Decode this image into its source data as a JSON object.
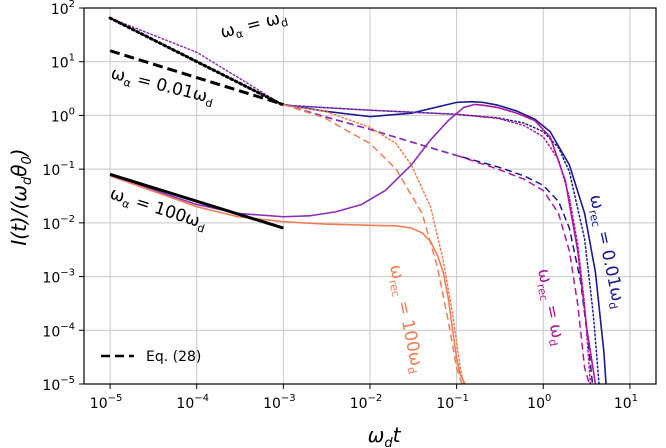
{
  "chart_data": {
    "type": "line",
    "xlabel": "ω_d t",
    "ylabel": "I(t)/(ω_d θ_0)",
    "xscale": "log",
    "yscale": "log",
    "xlim": [
      5e-06,
      20
    ],
    "ylim": [
      1e-05,
      100
    ],
    "xticks": [
      "10^-5",
      "10^-4",
      "10^-3",
      "10^-2",
      "10^-1",
      "10^0",
      "10^1"
    ],
    "yticks": [
      "10^-5",
      "10^-4",
      "10^-3",
      "10^-2",
      "10^-1",
      "10^0",
      "10^1",
      "10^2"
    ],
    "grid": true,
    "legend": {
      "location": "lower-left",
      "entries": [
        {
          "label": "Eq. (28)",
          "style": "dashed",
          "color": "#000000"
        }
      ]
    },
    "colors": {
      "blue": "#1a1a8c",
      "magenta": "#b0179e",
      "orange": "#f07d57",
      "purple": "#8c2fb8",
      "black": "#000000"
    },
    "annotations": [
      {
        "id": "omega-alpha-eq-omega-d",
        "text": "ω_α = ω_d",
        "color": "#000000"
      },
      {
        "id": "omega-alpha-001",
        "text": "ω_α = 0.01ω_d",
        "color": "#000000"
      },
      {
        "id": "omega-alpha-100",
        "text": "ω_α = 100ω_d",
        "color": "#000000"
      },
      {
        "id": "omega-rec-100",
        "text": "ω_rec = 100ω_d",
        "color": "#f07d57"
      },
      {
        "id": "omega-rec-1",
        "text": "ω_rec = ω_d",
        "color": "#b0179e"
      },
      {
        "id": "omega-rec-001",
        "text": "ω_rec = 0.01ω_d",
        "color": "#1a1a8c"
      }
    ],
    "series": [
      {
        "name": "ω_rec=0.01ω_d, ω_α=0.01ω_d (solid)",
        "color": "#1a1a8c",
        "style": "solid",
        "x": [
          0.001,
          0.003,
          0.01,
          0.03,
          0.1,
          0.15,
          0.2,
          0.3,
          0.5,
          0.8,
          1.2,
          2,
          3,
          4,
          5,
          5.3
        ],
        "y": [
          1.6,
          1.2,
          0.95,
          1.1,
          1.75,
          1.8,
          1.75,
          1.55,
          1.2,
          0.85,
          0.5,
          0.12,
          0.015,
          0.0012,
          4e-05,
          1e-05
        ]
      },
      {
        "name": "ω_rec=0.01ω_d, ω_α=ω_d (dotted)",
        "color": "#1a1a8c",
        "style": "dotted",
        "x": [
          0.001,
          0.003,
          0.01,
          0.03,
          0.1,
          0.3,
          0.6,
          1,
          1.5,
          2,
          3,
          3.8,
          4.4
        ],
        "y": [
          1.55,
          1.4,
          1.25,
          1.15,
          1.05,
          0.9,
          0.72,
          0.5,
          0.25,
          0.09,
          0.005,
          0.00018,
          1e-05
        ]
      },
      {
        "name": "ω_rec=0.01ω_d, ω_α=0.01ω_d (dashed)",
        "color": "#1a1a8c",
        "style": "dashed",
        "x": [
          0.001,
          0.003,
          0.01,
          0.03,
          0.1,
          0.3,
          0.6,
          1,
          1.5,
          2,
          2.7,
          3.3,
          3.7
        ],
        "y": [
          1.6,
          0.95,
          0.55,
          0.32,
          0.18,
          0.11,
          0.075,
          0.05,
          0.025,
          0.008,
          0.0008,
          6e-05,
          1e-05
        ]
      },
      {
        "name": "ω_rec=ω_d, ω_α=100ω_d (purple solid)",
        "color": "#8c2fb8",
        "style": "solid",
        "x": [
          1e-05,
          3e-05,
          0.0001,
          0.0003,
          0.001,
          0.002,
          0.004,
          0.008,
          0.015,
          0.03,
          0.05,
          0.08,
          0.12,
          0.16
        ],
        "y": [
          0.08,
          0.042,
          0.022,
          0.015,
          0.013,
          0.0135,
          0.016,
          0.022,
          0.04,
          0.12,
          0.35,
          0.8,
          1.4,
          1.6
        ]
      },
      {
        "name": "ω_rec=ω_d, ω_α=0.01ω_d (dashed)",
        "color": "#8c2fb8",
        "style": "dashed",
        "x": [
          0.001,
          0.003,
          0.01,
          0.03,
          0.1
        ],
        "y": [
          1.6,
          0.95,
          0.55,
          0.32,
          0.18
        ]
      },
      {
        "name": "ω_rec=ω_d, ω_α=ω_d (dotted)",
        "color": "#8c2fb8",
        "style": "dotted",
        "x": [
          1e-05,
          0.0001,
          0.001,
          0.003,
          0.01,
          0.03,
          0.1
        ],
        "y": [
          65,
          15,
          1.55,
          1.4,
          1.25,
          1.15,
          1.05
        ]
      },
      {
        "name": "ω_rec=ω_d (magenta solid)",
        "color": "#b0179e",
        "style": "solid",
        "x": [
          0.16,
          0.2,
          0.3,
          0.5,
          0.8,
          1.2,
          1.8,
          2.5,
          3.2,
          4
        ],
        "y": [
          1.6,
          1.55,
          1.4,
          1.1,
          0.8,
          0.4,
          0.06,
          0.003,
          0.0001,
          1e-05
        ]
      },
      {
        "name": "ω_rec=ω_d, ω_α=ω_d (magenta dotted)",
        "color": "#b0179e",
        "style": "dotted",
        "x": [
          0.1,
          0.3,
          0.6,
          1,
          1.5,
          2,
          2.5,
          3,
          3.5
        ],
        "y": [
          1.05,
          0.88,
          0.65,
          0.4,
          0.15,
          0.03,
          0.004,
          0.0003,
          1e-05
        ]
      },
      {
        "name": "ω_rec=ω_d, ω_α=0.01ω_d (magenta dashed)",
        "color": "#b0179e",
        "style": "dashed",
        "x": [
          0.1,
          0.3,
          0.6,
          1,
          1.5,
          2,
          2.5,
          3,
          3.4
        ],
        "y": [
          0.18,
          0.1,
          0.065,
          0.04,
          0.015,
          0.003,
          0.0003,
          2e-05,
          1e-05
        ]
      },
      {
        "name": "ω_rec=100ω_d, ω_α=100ω_d (solid)",
        "color": "#f07d57",
        "style": "solid",
        "x": [
          1e-05,
          3e-05,
          0.0001,
          0.0003,
          0.001,
          0.003,
          0.01,
          0.02,
          0.03,
          0.04,
          0.05,
          0.06,
          0.07,
          0.08,
          0.09,
          0.1,
          0.11,
          0.125
        ],
        "y": [
          0.075,
          0.04,
          0.02,
          0.013,
          0.0105,
          0.0095,
          0.009,
          0.0088,
          0.008,
          0.0065,
          0.0045,
          0.0025,
          0.0012,
          0.0004,
          0.0001,
          3e-05,
          1.5e-05,
          1e-05
        ]
      },
      {
        "name": "ω_rec=100ω_d, ω_α=0.01ω_d (dashed)",
        "color": "#f07d57",
        "style": "dashed",
        "x": [
          0.001,
          0.003,
          0.01,
          0.02,
          0.04,
          0.06,
          0.08,
          0.1,
          0.115
        ],
        "y": [
          1.6,
          0.9,
          0.3,
          0.1,
          0.015,
          0.0015,
          0.00015,
          2e-05,
          1e-05
        ]
      },
      {
        "name": "ω_rec=100ω_d, ω_α=ω_d (dotted)",
        "color": "#f07d57",
        "style": "dotted",
        "x": [
          0.001,
          0.003,
          0.01,
          0.02,
          0.03,
          0.05,
          0.07,
          0.09,
          0.11,
          0.12
        ],
        "y": [
          1.55,
          1.2,
          0.6,
          0.3,
          0.12,
          0.02,
          0.002,
          0.0002,
          2e-05,
          1e-05
        ]
      },
      {
        "name": "Eq. (28) ω_α=ω_d",
        "color": "#000000",
        "style": "dotted-heavy",
        "x": [
          1e-05,
          0.001
        ],
        "y": [
          65,
          1.55
        ]
      },
      {
        "name": "Eq. (28) ω_α=0.01ω_d",
        "color": "#000000",
        "style": "dashed-heavy",
        "x": [
          1e-05,
          0.001
        ],
        "y": [
          16,
          1.6
        ]
      },
      {
        "name": "Eq. (28) ω_α=100ω_d",
        "color": "#000000",
        "style": "solid-heavy",
        "x": [
          1e-05,
          0.001
        ],
        "y": [
          0.08,
          0.008
        ]
      }
    ]
  }
}
